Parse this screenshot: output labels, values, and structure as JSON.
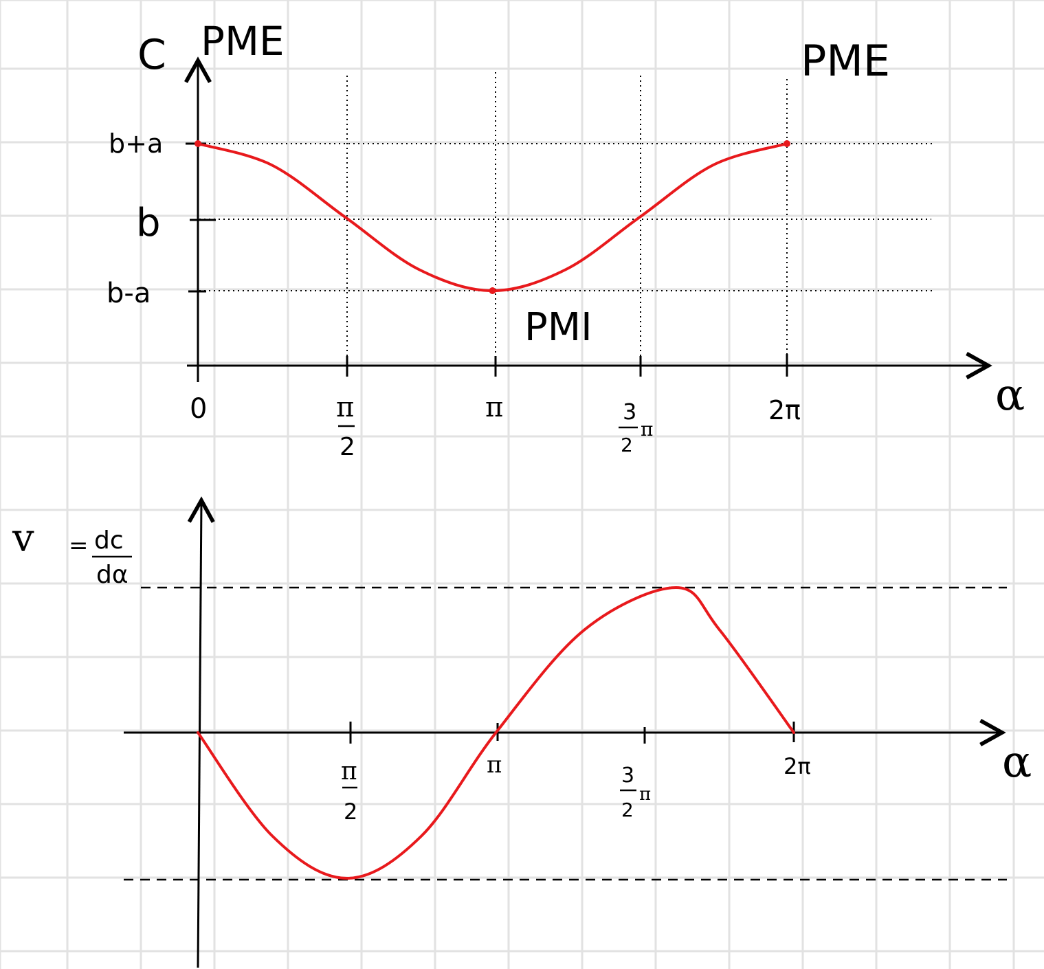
{
  "colors": {
    "paper": "#ffffff",
    "grid": "#e2e2e2",
    "ink": "#000000",
    "curve": "#e8191c"
  },
  "chart_data": [
    {
      "type": "line",
      "title": "",
      "ylabel": "C",
      "xlabel": "α",
      "x_ticks": [
        {
          "value": 0,
          "label": "0"
        },
        {
          "value": 1.5708,
          "label_num": "π",
          "label_den": "2"
        },
        {
          "value": 3.1416,
          "label": "π"
        },
        {
          "value": 4.7124,
          "label_num": "3",
          "label_den": "2",
          "label_suffix": "π"
        },
        {
          "value": 6.2832,
          "label": "2π"
        }
      ],
      "y_ticks": [
        {
          "level": "b+a",
          "label": "b+a"
        },
        {
          "level": "b",
          "label": "b"
        },
        {
          "level": "b-a",
          "label": "b-a"
        }
      ],
      "series": [
        {
          "x": [
            0,
            0.785,
            1.571,
            2.356,
            3.142,
            3.927,
            4.712,
            5.498,
            6.283
          ],
          "y": [
            1,
            0.71,
            0,
            -0.71,
            -1,
            -0.71,
            0,
            0.71,
            1
          ]
        }
      ],
      "annotations": [
        {
          "text": "PME",
          "at_x": 0
        },
        {
          "text": "PMI",
          "at_x": 3.1416
        },
        {
          "text": "PME",
          "at_x": 6.2832
        }
      ],
      "grid": "dotted guide lines at b+a, b, b-a and at each x tick"
    },
    {
      "type": "line",
      "title": "",
      "ylabel_left": "v",
      "ylabel_eq": "=",
      "ylabel_num": "dc",
      "ylabel_den": "dα",
      "xlabel": "α",
      "x_ticks": [
        {
          "value": 1.5708,
          "label_num": "π",
          "label_den": "2"
        },
        {
          "value": 3.1416,
          "label": "π"
        },
        {
          "value": 4.7124,
          "label_num": "3",
          "label_den": "2",
          "label_suffix": "π"
        },
        {
          "value": 6.2832,
          "label": "2π"
        }
      ],
      "series": [
        {
          "x": [
            0,
            0.785,
            1.571,
            2.356,
            3.142,
            3.927,
            4.712,
            5.498,
            6.283
          ],
          "y": [
            0,
            -0.71,
            -1,
            -0.71,
            0,
            0.71,
            1,
            0.71,
            0
          ]
        }
      ],
      "grid": "dashed guide lines at maximum and minimum"
    }
  ]
}
